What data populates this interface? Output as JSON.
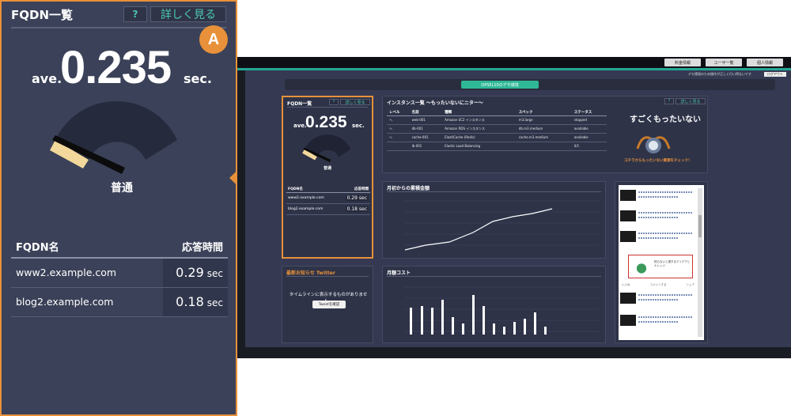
{
  "zoom": {
    "title": "FQDN一覧",
    "help_label": "?",
    "more_label": "詳しく見る",
    "badge": "A",
    "ave_label": "ave.",
    "value": "0.235",
    "unit": "sec.",
    "gauge_label": "普通",
    "table": {
      "col_name": "FQDN名",
      "col_time": "応答時間",
      "rows": [
        {
          "fqdn": "www2.example.com",
          "time": "0.29",
          "unit": "sec"
        },
        {
          "fqdn": "blog2.example.com",
          "time": "0.18",
          "unit": "sec"
        }
      ]
    }
  },
  "dash": {
    "top_buttons": [
      "料金情報",
      "ユーザ一覧",
      "個人情報"
    ],
    "note": "デモ環境のため操作が正しく行い得ないです",
    "logout": "ログアウト",
    "demo_button": "OPSEL10のデモ環境",
    "fqdn": {
      "title": "FQDN一覧",
      "help": "?",
      "more": "詳しく見る",
      "ave": "ave.",
      "value": "0.235",
      "unit": "sec.",
      "gauge_label": "普通",
      "col_name": "FQDN名",
      "col_time": "応答時間",
      "rows": [
        {
          "fqdn": "www2.example.com",
          "time": "0.29 sec"
        },
        {
          "fqdn": "blog2.example.com",
          "time": "0.18 sec"
        }
      ]
    },
    "instances": {
      "title": "インスタンス一覧 ～もったいないにニター～",
      "help": "?",
      "more": "詳しく見る",
      "headers": [
        "レベル",
        "名前",
        "種類",
        "スペック",
        "ステータス"
      ],
      "rows": [
        {
          "level": "へ",
          "name": "web-001",
          "type": "Amazon EC2 インスタンス",
          "spec": "m3.large",
          "status": "stopped"
        },
        {
          "level": "へ",
          "name": "db-001",
          "type": "Amazon RDS インスタンス",
          "spec": "db.m3.medium",
          "status": "available"
        },
        {
          "level": "へ",
          "name": "cache-001",
          "type": "ElastiCache (Redis)",
          "spec": "cache.m3.medium",
          "status": "available"
        },
        {
          "level": "",
          "name": "lb-001",
          "type": "Elastic Load Balancing",
          "spec": "",
          "status": "0/1"
        }
      ],
      "waste_title": "すごくもったいない",
      "waste_link_prefix": "コチラ",
      "waste_link_rest": "からもったいない資源をチェック！"
    },
    "monthly": {
      "title": "月初からの累積金額"
    },
    "cost": {
      "title": "月額コスト"
    },
    "notice": {
      "title_accent": "最新",
      "title_rest": "お知らせ Twitter",
      "message": "タイムラインに表示するものがありません。",
      "button": "Tweetを確認"
    },
    "feed": {
      "card_text": "知らないと損するアイデアとナレッジ",
      "like": "いいね",
      "comment": "コメントする",
      "share": "シェア"
    }
  },
  "colors": {
    "accent_orange": "#e8913a",
    "accent_teal": "#4cc8b0",
    "panel_bg": "#3b4158"
  }
}
